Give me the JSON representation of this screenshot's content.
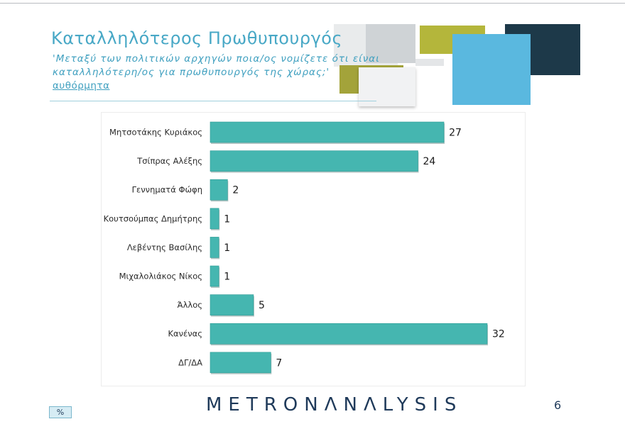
{
  "slide": {
    "title": "Καταλληλότερος Πρωθυπουργός",
    "subtitle_line1": "'Μεταξύ των πολιτικών αρχηγών ποια/ος νομίζετε ότι είναι",
    "subtitle_line2": "καταλληλότερη/ος για πρωθυπουργός της χώρας;'",
    "subtitle_note": "αυθόρμητα",
    "brand": "METRONΛNΛLYSIS",
    "page_number": "6",
    "unit_badge": "%"
  },
  "colors": {
    "accent": "#48a8c6",
    "bar": "#45b6b0",
    "bar_dark": "#2f9c96",
    "text_dark": "#1f3a5a"
  },
  "chart_data": {
    "type": "bar",
    "orientation": "horizontal",
    "categories": [
      "Μητσοτάκης Κυριάκος",
      "Τσίπρας Αλέξης",
      "Γεννηματά Φώφη",
      "Κουτσούμπας Δημήτρης",
      "Λεβέντης Βασίλης",
      "Μιχαλολιάκος Νίκος",
      "Άλλος",
      "Κανένας",
      "ΔΓ/ΔΑ"
    ],
    "values": [
      27,
      24,
      2,
      1,
      1,
      1,
      5,
      32,
      7
    ],
    "xlim": [
      0,
      32
    ],
    "data_labels": true,
    "grid": false
  }
}
